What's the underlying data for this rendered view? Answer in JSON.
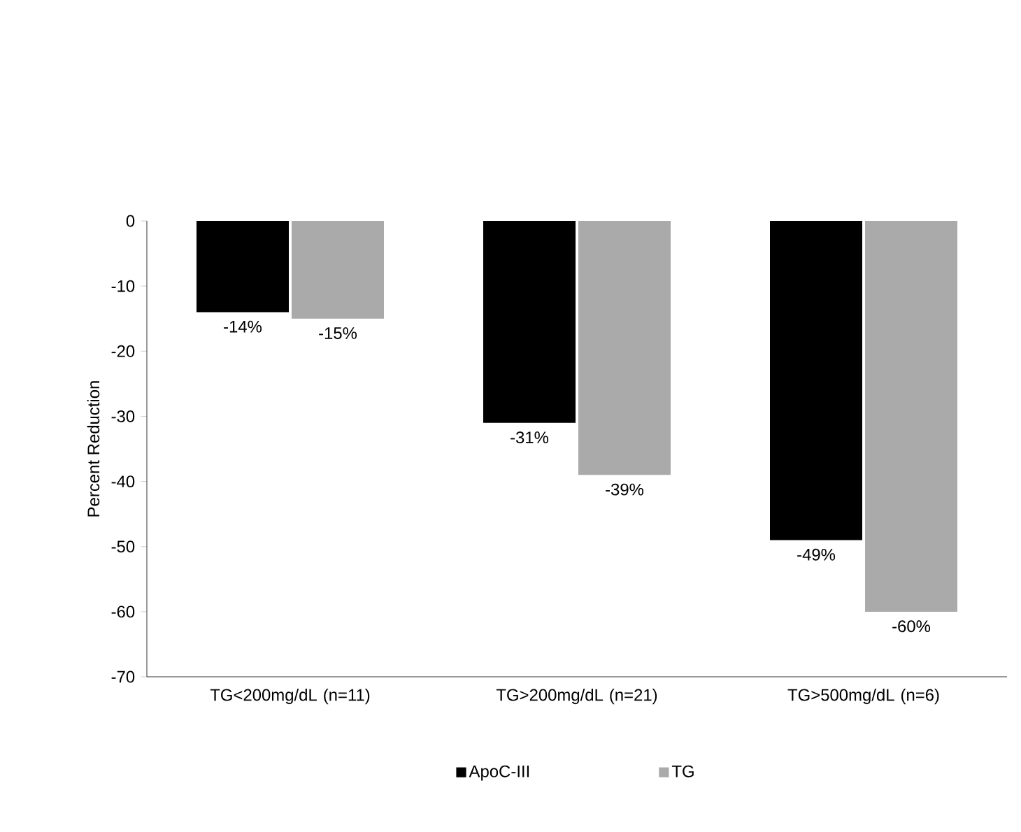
{
  "chart_data": {
    "type": "bar",
    "ylabel": "Percent Reduction",
    "categories": [
      "TG<200mg/dL (n=11)",
      "TG>200mg/dL (n=21)",
      "TG>500mg/dL (n=6)"
    ],
    "series": [
      {
        "name": "ApoC-III",
        "color": "#000000",
        "values": [
          -14,
          -31,
          -49
        ],
        "value_labels": [
          "-14%",
          "-31%",
          "-49%"
        ]
      },
      {
        "name": "TG",
        "color": "#aaaaaa",
        "values": [
          -15,
          -39,
          -60
        ],
        "value_labels": [
          "-15%",
          "-39%",
          "-60%"
        ]
      }
    ],
    "ylim": [
      -70,
      0
    ],
    "yticks": [
      -70,
      -60,
      -50,
      -40,
      -30,
      -20,
      -10,
      0
    ],
    "legend": "bottom"
  }
}
